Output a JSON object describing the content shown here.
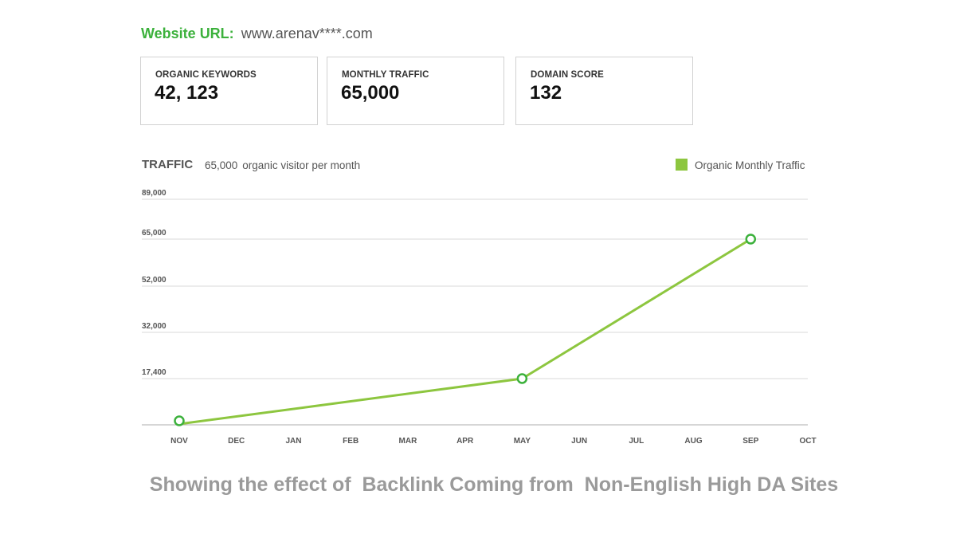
{
  "header": {
    "url_label": "Website URL:",
    "url_value": "www.arenav****.com"
  },
  "cards": [
    {
      "label": "ORGANIC KEYWORDS",
      "value": "42, 123"
    },
    {
      "label": "MONTHLY TRAFFIC",
      "value": "65,000"
    },
    {
      "label": "DOMAIN SCORE",
      "value": "132"
    }
  ],
  "traffic": {
    "title": "TRAFFIC",
    "value": "65,000",
    "subtitle": "organic visitor per month"
  },
  "colors": {
    "accent_green": "#3cb13c",
    "line_green": "#8dc63f",
    "grid": "#d9d9d9"
  },
  "chart_data": {
    "type": "line",
    "categories": [
      "NOV",
      "DEC",
      "JAN",
      "FEB",
      "MAR",
      "APR",
      "MAY",
      "JUN",
      "JUL",
      "AUG",
      "SEP",
      "OCT"
    ],
    "y_ticks": [
      17400,
      32000,
      52000,
      65000,
      89000
    ],
    "y_tick_labels": [
      "17,400",
      "32,000",
      "52,000",
      "65,000",
      "89,000"
    ],
    "series": [
      {
        "name": "Organic Monthly Traffic",
        "points": [
          {
            "x": "NOV",
            "y": 1500
          },
          {
            "x": "MAY",
            "y": 17400
          },
          {
            "x": "SEP",
            "y": 65000
          }
        ]
      }
    ],
    "grid": true,
    "legend_position": "top-right"
  },
  "caption": "Showing the effect of  Backlink Coming from  Non-English High DA Sites"
}
